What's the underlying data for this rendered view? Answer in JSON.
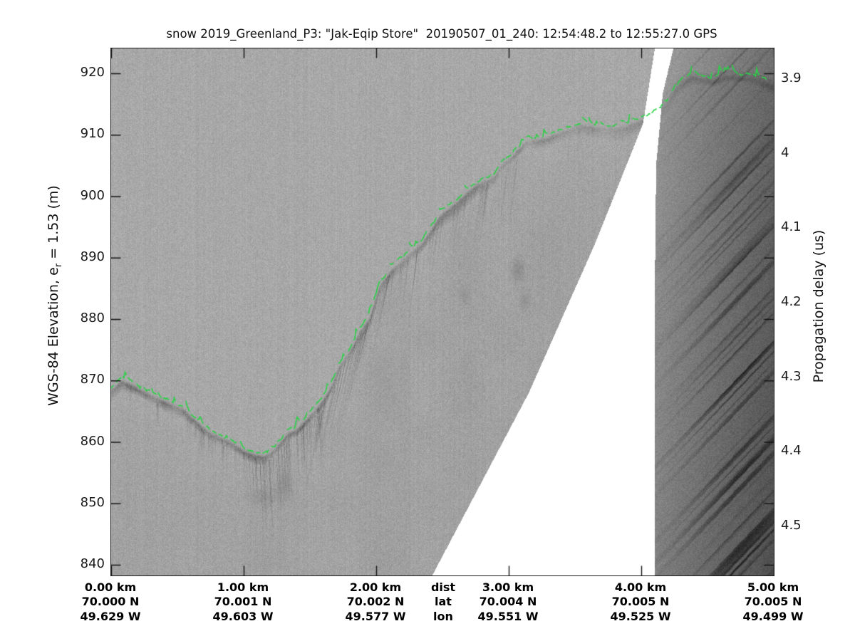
{
  "title": "snow 2019_Greenland_P3: \"Jak-Eqip Store\"  20190507_01_240: 12:54:48.2 to 12:55:27.0 GPS",
  "left_axis": {
    "label_prefix": "WGS-84 Elevation, e",
    "label_sub": "r",
    "label_suffix": " = 1.53 (m)",
    "tick_labels": [
      "920",
      "910",
      "900",
      "890",
      "880",
      "870",
      "860",
      "850",
      "840"
    ]
  },
  "right_axis": {
    "label": "Propagation delay (us)",
    "tick_labels": [
      "3.9",
      "4",
      "4.1",
      "4.2",
      "4.3",
      "4.4",
      "4.5"
    ]
  },
  "bottom_axis": {
    "legend": [
      "dist",
      "lat",
      "lon"
    ],
    "columns": [
      {
        "dist": "0.00 km",
        "lat": "70.000 N",
        "lon": "49.629 W"
      },
      {
        "dist": "1.00 km",
        "lat": "70.001 N",
        "lon": "49.603 W"
      },
      {
        "dist": "2.00 km",
        "lat": "70.002 N",
        "lon": "49.577 W"
      },
      {
        "dist": "3.00 km",
        "lat": "70.004 N",
        "lon": "49.551 W"
      },
      {
        "dist": "4.00 km",
        "lat": "70.005 N",
        "lon": "49.525 W"
      },
      {
        "dist": "5.00 km",
        "lat": "70.005 N",
        "lon": "49.499 W"
      }
    ]
  },
  "chart_data": {
    "type": "heatmap",
    "description": "Airborne snow radar echogram of a glacier surface depression; gray-scale radar return intensity vs distance and WGS-84 elevation, with green picked surface layer, a white no-data wedge near 2.4-4.1 km and a darker second data segment from 4.1 km to 5 km.",
    "title": "snow 2019_Greenland_P3: \"Jak-Eqip Store\"  20190507_01_240: 12:54:48.2 to 12:55:27.0 GPS",
    "xlabel_rows": [
      "dist",
      "lat",
      "lon"
    ],
    "ylabel_left": "WGS-84 Elevation, e_r = 1.53 (m)",
    "ylabel_right": "Propagation delay (us)",
    "xlim_km": [
      0,
      5
    ],
    "elevation_lim_m": [
      838.2,
      924.1
    ],
    "distance_ticks_km": [
      0,
      1,
      2,
      3,
      4,
      5
    ],
    "elevation_ticks_m": [
      920,
      910,
      900,
      890,
      880,
      870,
      860,
      850,
      840
    ],
    "delay_ticks_us": [
      3.9,
      4.0,
      4.1,
      4.2,
      4.3,
      4.4,
      4.5
    ],
    "surface_pick": {
      "x_km": [
        0.0,
        0.08,
        0.16,
        0.3,
        0.45,
        0.55,
        0.65,
        0.75,
        0.9,
        1.0,
        1.08,
        1.15,
        1.22,
        1.28,
        1.33,
        1.4,
        1.5,
        1.58,
        1.66,
        1.72,
        1.8,
        1.87,
        1.95,
        2.02,
        2.11,
        2.23,
        2.35,
        2.48,
        2.61,
        2.75,
        2.89,
        2.95,
        3.02,
        3.13,
        3.25,
        3.37,
        3.55,
        3.7,
        3.86,
        4.02,
        4.11,
        4.2,
        4.26,
        4.37,
        4.47,
        4.54,
        4.65,
        4.77,
        4.87,
        4.96,
        5.0
      ],
      "elevation_m": [
        868.5,
        870.0,
        869.2,
        867.6,
        866.2,
        865.2,
        863.2,
        861.4,
        860.0,
        858.6,
        857.9,
        857.7,
        858.6,
        859.9,
        861.4,
        862.0,
        864.3,
        866.3,
        869.0,
        872.3,
        874.8,
        877.8,
        880.2,
        885.3,
        887.9,
        890.2,
        892.5,
        896.8,
        899.1,
        901.8,
        903.2,
        905.3,
        906.4,
        909.0,
        909.2,
        910.3,
        911.6,
        911.1,
        911.2,
        912.6,
        913.5,
        915.2,
        917.7,
        919.6,
        919.2,
        918.9,
        919.7,
        919.4,
        919.1,
        918.3,
        917.9
      ]
    },
    "data_gap": {
      "left_edge_km_elev": [
        [
          4.1,
          924.1
        ],
        [
          4.01,
          911.8
        ],
        [
          3.65,
          892.4
        ],
        [
          3.15,
          868.1
        ],
        [
          2.42,
          838.3
        ]
      ],
      "right_edge_km_elev": [
        [
          4.24,
          924.1
        ],
        [
          4.16,
          916.8
        ],
        [
          4.11,
          905.2
        ],
        [
          4.1,
          885.4
        ],
        [
          4.1,
          838.3
        ]
      ]
    },
    "subsurface_blobs_km_elev": [
      [
        3.07,
        888,
        9,
        16,
        22
      ],
      [
        3.12,
        883,
        7,
        12,
        16
      ],
      [
        2.66,
        884,
        6,
        10,
        12
      ],
      [
        3.76,
        899,
        8,
        8,
        10
      ],
      [
        1.15,
        851,
        22,
        14,
        14
      ],
      [
        1.3,
        853,
        12,
        18,
        16
      ]
    ],
    "streak_zones": [
      {
        "km0": 0.1,
        "km1": 0.55,
        "count": 14,
        "len0": 10,
        "len1": 40,
        "s0": 8,
        "s1": 18,
        "tilt": 0
      },
      {
        "km0": 0.55,
        "km1": 1.0,
        "count": 40,
        "len0": 15,
        "len1": 60,
        "s0": 10,
        "s1": 28,
        "tilt": 0
      },
      {
        "km0": 1.0,
        "km1": 1.58,
        "count": 55,
        "len0": 30,
        "len1": 130,
        "s0": 14,
        "s1": 36,
        "tilt": 0.05
      },
      {
        "km0": 1.58,
        "km1": 2.1,
        "count": 50,
        "len0": 40,
        "len1": 160,
        "s0": 10,
        "s1": 30,
        "tilt": -0.22
      },
      {
        "km0": 2.1,
        "km1": 3.1,
        "count": 60,
        "len0": 30,
        "len1": 120,
        "s0": 7,
        "s1": 20,
        "tilt": -0.12
      },
      {
        "km0": 3.15,
        "km1": 3.95,
        "count": 12,
        "len0": 15,
        "len1": 50,
        "s0": 6,
        "s1": 14,
        "tilt": -0.1
      }
    ],
    "colors": {
      "background_gray": "#a8a8a8",
      "surface_band": "#3c3c3c",
      "right_segment": "#6e6e6e",
      "gap_white": "#ffffff",
      "surface_pick_green": "#2ad146",
      "axis_text": "#1a1a1a"
    }
  }
}
